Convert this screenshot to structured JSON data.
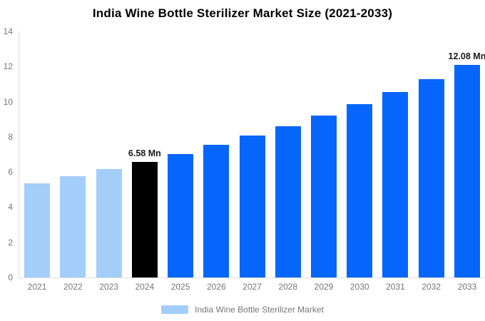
{
  "title": "India Wine Bottle Sterilizer Market Size (2021-2033)",
  "colors": {
    "historical": "#A3CEFA",
    "base_year": "#000000",
    "forecast": "#0666FB",
    "axis_line": "#DEDEDE",
    "tick_text": "#757575",
    "annotation_text": "#1A1A1A",
    "title_text": "#000000"
  },
  "chart_data": {
    "type": "bar",
    "title": "India Wine Bottle Sterilizer Market Size (2021-2033)",
    "categories": [
      "2021",
      "2022",
      "2023",
      "2024",
      "2025",
      "2026",
      "2027",
      "2028",
      "2029",
      "2030",
      "2031",
      "2032",
      "2033"
    ],
    "values": [
      5.37,
      5.75,
      6.15,
      6.58,
      7.04,
      7.53,
      8.06,
      8.62,
      9.22,
      9.87,
      10.56,
      11.29,
      12.08
    ],
    "unit": "Mn",
    "xlabel": "",
    "ylabel": "",
    "ylim": [
      0,
      14
    ],
    "yticks": [
      0,
      2,
      4,
      6,
      8,
      10,
      12,
      14
    ],
    "grid": false,
    "bar_color_roles": [
      "historical",
      "historical",
      "historical",
      "base_year",
      "forecast",
      "forecast",
      "forecast",
      "forecast",
      "forecast",
      "forecast",
      "forecast",
      "forecast",
      "forecast"
    ],
    "annotations": [
      {
        "category": "2024",
        "text": "6.58 Mn"
      },
      {
        "category": "2033",
        "text": "12.08 Mn"
      }
    ],
    "legend_position": "bottom",
    "legend": [
      {
        "label": "India Wine Bottle Sterilizer Market",
        "color_role": "historical"
      }
    ]
  }
}
